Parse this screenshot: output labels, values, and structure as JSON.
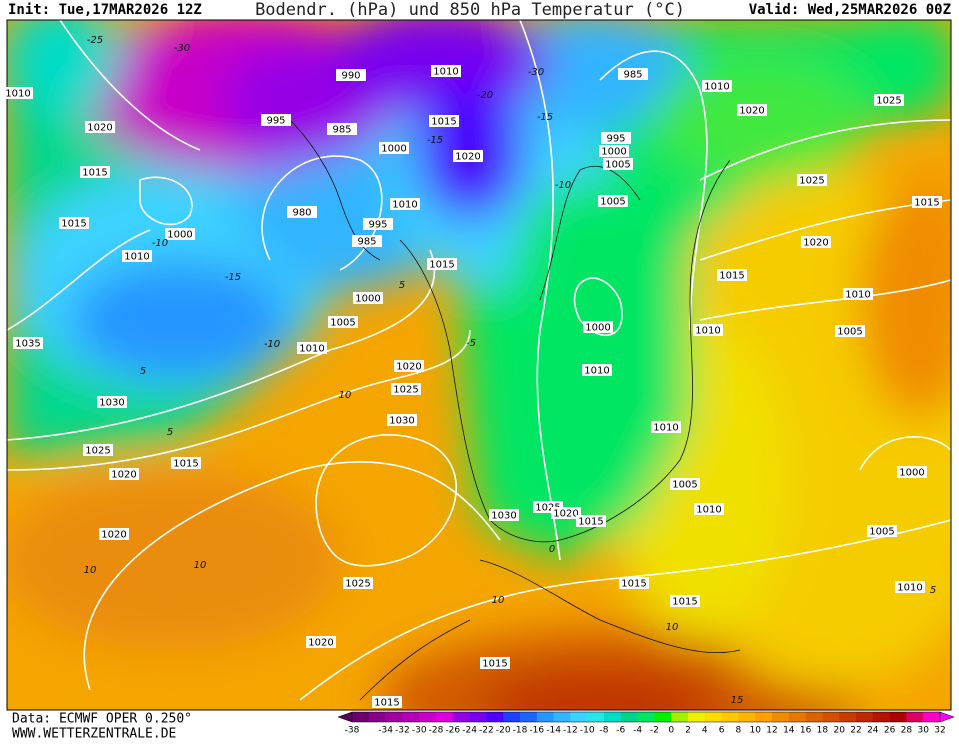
{
  "header": {
    "init": "Init: Tue,17MAR2026 12Z",
    "title": "Bodendr. (hPa) und 850 hPa Temperatur (°C)",
    "valid": "Valid: Wed,25MAR2026 00Z"
  },
  "footer": {
    "source": "Data: ECMWF OPER 0.250°",
    "site": "WWW.WETTERZENTRALE.DE"
  },
  "colorbar": {
    "ticks": [
      -38,
      -34,
      -32,
      -30,
      -28,
      -26,
      -24,
      -22,
      -20,
      -18,
      -16,
      -14,
      -12,
      -10,
      -8,
      -6,
      -4,
      -2,
      0,
      2,
      4,
      6,
      8,
      10,
      12,
      14,
      16,
      18,
      20,
      22,
      24,
      26,
      28,
      30,
      32
    ],
    "colors": [
      "#5a005a",
      "#6e006e",
      "#8a008a",
      "#a000a0",
      "#b400b4",
      "#c800c8",
      "#dc00dc",
      "#9600e6",
      "#7800f0",
      "#4b00ff",
      "#2040ff",
      "#1e64ff",
      "#2896ff",
      "#32b4ff",
      "#3cd2ff",
      "#28e6e6",
      "#00dcc8",
      "#00d28c",
      "#00e664",
      "#00f000",
      "#a0f000",
      "#f0f000",
      "#ffdc00",
      "#ffc800",
      "#ffb400",
      "#ffa000",
      "#f08c00",
      "#e67800",
      "#dc6400",
      "#d25000",
      "#c83c00",
      "#be2800",
      "#b41400",
      "#aa0000",
      "#dc0064",
      "#ff00c8",
      "#ff00ff"
    ]
  },
  "isobar_labels": [
    "1010",
    "1020",
    "1015",
    "1015",
    "1010",
    "1000",
    "1035",
    "1030",
    "1025",
    "1020",
    "1015",
    "1020",
    "995",
    "985",
    "980",
    "990",
    "1000",
    "1010",
    "995",
    "985",
    "1000",
    "1005",
    "1010",
    "1015",
    "1020",
    "1010",
    "1015",
    "1020",
    "1025",
    "1030",
    "985",
    "1010",
    "1020",
    "1025",
    "995",
    "1000",
    "1005",
    "1005",
    "1025",
    "1015",
    "1020",
    "1015",
    "1010",
    "1005",
    "1010",
    "1000",
    "1010",
    "1010",
    "1000",
    "1005",
    "1010",
    "1005",
    "1010",
    "1030",
    "1025",
    "1020",
    "1015",
    "1015",
    "1015",
    "1025",
    "1020",
    "1015",
    "1015"
  ],
  "temperature_labels": [
    "-25",
    "-30",
    "-20",
    "-15",
    "-10",
    "-5",
    "5",
    "0",
    "5",
    "10",
    "-10",
    "-15",
    "5",
    "10",
    "10",
    "-10",
    "-30",
    "-15",
    "5",
    "10",
    "15",
    "10"
  ]
}
